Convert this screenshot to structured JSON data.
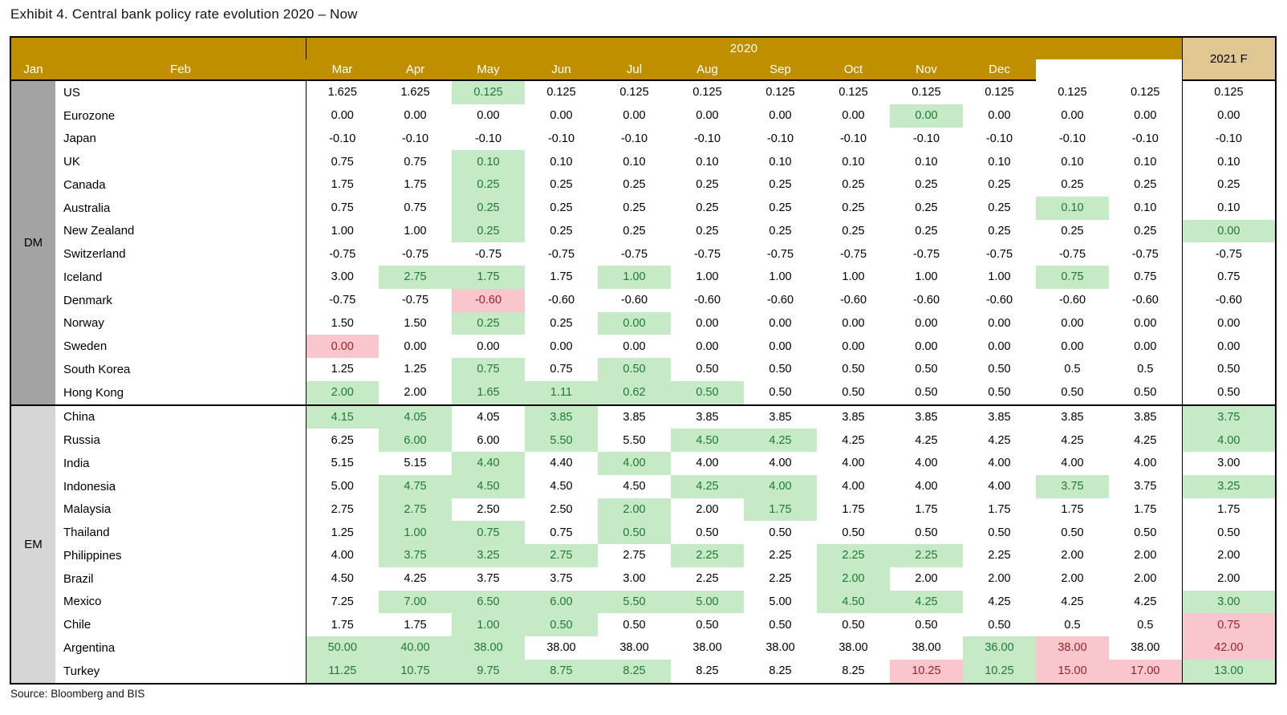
{
  "title": "Exhibit 4. Central bank policy rate evolution 2020 – Now",
  "source": "Source: Bloomberg and BIS",
  "colors": {
    "header_gold": "#BF8F00",
    "forecast_tan": "#E0C690",
    "dm_band": "#A3A3A3",
    "em_band": "#D6D6D6",
    "cut_bg": "#C6E9C6",
    "cut_text": "#1E7B34",
    "hike_bg": "#F8C6CC",
    "hike_text": "#9C2229",
    "border": "#000000"
  },
  "legend_note": {
    "g": "rate-cut highlight (green)",
    "r": "rate-hike highlight (pink)"
  },
  "table": {
    "header": {
      "year": "2020",
      "months": [
        "Jan",
        "Feb",
        "Mar",
        "Apr",
        "May",
        "Jun",
        "Jul",
        "Aug",
        "Sep",
        "Oct",
        "Nov",
        "Dec"
      ],
      "forecast": "2021 F"
    },
    "groups": [
      {
        "label": "DM",
        "rows": 14
      },
      {
        "label": "EM",
        "rows": 12
      }
    ],
    "rows": [
      {
        "country": "US",
        "values": [
          "1.625",
          "1.625",
          "0.125",
          "0.125",
          "0.125",
          "0.125",
          "0.125",
          "0.125",
          "0.125",
          "0.125",
          "0.125",
          "0.125",
          "0.125"
        ],
        "marks": [
          "",
          "",
          "g",
          "",
          "",
          "",
          "",
          "",
          "",
          "",
          "",
          "",
          ""
        ]
      },
      {
        "country": "Eurozone",
        "values": [
          "0.00",
          "0.00",
          "0.00",
          "0.00",
          "0.00",
          "0.00",
          "0.00",
          "0.00",
          "0.00",
          "0.00",
          "0.00",
          "0.00",
          "0.00"
        ],
        "marks": [
          "",
          "",
          "",
          "",
          "",
          "",
          "",
          "",
          "g",
          "",
          "",
          "",
          ""
        ]
      },
      {
        "country": "Japan",
        "values": [
          "-0.10",
          "-0.10",
          "-0.10",
          "-0.10",
          "-0.10",
          "-0.10",
          "-0.10",
          "-0.10",
          "-0.10",
          "-0.10",
          "-0.10",
          "-0.10",
          "-0.10"
        ],
        "marks": [
          "",
          "",
          "",
          "",
          "",
          "",
          "",
          "",
          "",
          "",
          "",
          "",
          ""
        ]
      },
      {
        "country": "UK",
        "values": [
          "0.75",
          "0.75",
          "0.10",
          "0.10",
          "0.10",
          "0.10",
          "0.10",
          "0.10",
          "0.10",
          "0.10",
          "0.10",
          "0.10",
          "0.10"
        ],
        "marks": [
          "",
          "",
          "g",
          "",
          "",
          "",
          "",
          "",
          "",
          "",
          "",
          "",
          ""
        ]
      },
      {
        "country": "Canada",
        "values": [
          "1.75",
          "1.75",
          "0.25",
          "0.25",
          "0.25",
          "0.25",
          "0.25",
          "0.25",
          "0.25",
          "0.25",
          "0.25",
          "0.25",
          "0.25"
        ],
        "marks": [
          "",
          "",
          "g",
          "",
          "",
          "",
          "",
          "",
          "",
          "",
          "",
          "",
          ""
        ]
      },
      {
        "country": "Australia",
        "values": [
          "0.75",
          "0.75",
          "0.25",
          "0.25",
          "0.25",
          "0.25",
          "0.25",
          "0.25",
          "0.25",
          "0.25",
          "0.10",
          "0.10",
          "0.10"
        ],
        "marks": [
          "",
          "",
          "g",
          "",
          "",
          "",
          "",
          "",
          "",
          "",
          "g",
          "",
          ""
        ]
      },
      {
        "country": "New Zealand",
        "values": [
          "1.00",
          "1.00",
          "0.25",
          "0.25",
          "0.25",
          "0.25",
          "0.25",
          "0.25",
          "0.25",
          "0.25",
          "0.25",
          "0.25",
          "0.00"
        ],
        "marks": [
          "",
          "",
          "g",
          "",
          "",
          "",
          "",
          "",
          "",
          "",
          "",
          "",
          "g"
        ]
      },
      {
        "country": "Switzerland",
        "values": [
          "-0.75",
          "-0.75",
          "-0.75",
          "-0.75",
          "-0.75",
          "-0.75",
          "-0.75",
          "-0.75",
          "-0.75",
          "-0.75",
          "-0.75",
          "-0.75",
          "-0.75"
        ],
        "marks": [
          "",
          "",
          "",
          "",
          "",
          "",
          "",
          "",
          "",
          "",
          "",
          "",
          ""
        ]
      },
      {
        "country": "Iceland",
        "values": [
          "3.00",
          "2.75",
          "1.75",
          "1.75",
          "1.00",
          "1.00",
          "1.00",
          "1.00",
          "1.00",
          "1.00",
          "0.75",
          "0.75",
          "0.75"
        ],
        "marks": [
          "",
          "g",
          "g",
          "",
          "g",
          "",
          "",
          "",
          "",
          "",
          "g",
          "",
          ""
        ]
      },
      {
        "country": "Denmark",
        "values": [
          "-0.75",
          "-0.75",
          "-0.60",
          "-0.60",
          "-0.60",
          "-0.60",
          "-0.60",
          "-0.60",
          "-0.60",
          "-0.60",
          "-0.60",
          "-0.60",
          "-0.60"
        ],
        "marks": [
          "",
          "",
          "r",
          "",
          "",
          "",
          "",
          "",
          "",
          "",
          "",
          "",
          ""
        ]
      },
      {
        "country": "Norway",
        "values": [
          "1.50",
          "1.50",
          "0.25",
          "0.25",
          "0.00",
          "0.00",
          "0.00",
          "0.00",
          "0.00",
          "0.00",
          "0.00",
          "0.00",
          "0.00"
        ],
        "marks": [
          "",
          "",
          "g",
          "",
          "g",
          "",
          "",
          "",
          "",
          "",
          "",
          "",
          ""
        ]
      },
      {
        "country": "Sweden",
        "values": [
          "0.00",
          "0.00",
          "0.00",
          "0.00",
          "0.00",
          "0.00",
          "0.00",
          "0.00",
          "0.00",
          "0.00",
          "0.00",
          "0.00",
          "0.00"
        ],
        "marks": [
          "r",
          "",
          "",
          "",
          "",
          "",
          "",
          "",
          "",
          "",
          "",
          "",
          ""
        ]
      },
      {
        "country": "South Korea",
        "values": [
          "1.25",
          "1.25",
          "0.75",
          "0.75",
          "0.50",
          "0.50",
          "0.50",
          "0.50",
          "0.50",
          "0.50",
          "0.5",
          "0.5",
          "0.50"
        ],
        "marks": [
          "",
          "",
          "g",
          "",
          "g",
          "",
          "",
          "",
          "",
          "",
          "",
          "",
          ""
        ]
      },
      {
        "country": "Hong Kong",
        "values": [
          "2.00",
          "2.00",
          "1.65",
          "1.11",
          "0.62",
          "0.50",
          "0.50",
          "0.50",
          "0.50",
          "0.50",
          "0.50",
          "0.50",
          "0.50"
        ],
        "marks": [
          "g",
          "",
          "g",
          "g",
          "g",
          "g",
          "",
          "",
          "",
          "",
          "",
          "",
          ""
        ]
      },
      {
        "country": "China",
        "values": [
          "4.15",
          "4.05",
          "4.05",
          "3.85",
          "3.85",
          "3.85",
          "3.85",
          "3.85",
          "3.85",
          "3.85",
          "3.85",
          "3.85",
          "3.75"
        ],
        "marks": [
          "g",
          "g",
          "",
          "g",
          "",
          "",
          "",
          "",
          "",
          "",
          "",
          "",
          "g"
        ]
      },
      {
        "country": "Russia",
        "values": [
          "6.25",
          "6.00",
          "6.00",
          "5.50",
          "5.50",
          "4.50",
          "4.25",
          "4.25",
          "4.25",
          "4.25",
          "4.25",
          "4.25",
          "4.00"
        ],
        "marks": [
          "",
          "g",
          "",
          "g",
          "",
          "g",
          "g",
          "",
          "",
          "",
          "",
          "",
          "g"
        ]
      },
      {
        "country": "India",
        "values": [
          "5.15",
          "5.15",
          "4.40",
          "4.40",
          "4.00",
          "4.00",
          "4.00",
          "4.00",
          "4.00",
          "4.00",
          "4.00",
          "4.00",
          "3.00"
        ],
        "marks": [
          "",
          "",
          "g",
          "",
          "g",
          "",
          "",
          "",
          "",
          "",
          "",
          "",
          ""
        ]
      },
      {
        "country": "Indonesia",
        "values": [
          "5.00",
          "4.75",
          "4.50",
          "4.50",
          "4.50",
          "4.25",
          "4.00",
          "4.00",
          "4.00",
          "4.00",
          "3.75",
          "3.75",
          "3.25"
        ],
        "marks": [
          "",
          "g",
          "g",
          "",
          "",
          "g",
          "g",
          "",
          "",
          "",
          "g",
          "",
          "g"
        ]
      },
      {
        "country": "Malaysia",
        "values": [
          "2.75",
          "2.75",
          "2.50",
          "2.50",
          "2.00",
          "2.00",
          "1.75",
          "1.75",
          "1.75",
          "1.75",
          "1.75",
          "1.75",
          "1.75"
        ],
        "marks": [
          "",
          "g",
          "",
          "",
          "g",
          "",
          "g",
          "",
          "",
          "",
          "",
          "",
          ""
        ]
      },
      {
        "country": "Thailand",
        "values": [
          "1.25",
          "1.00",
          "0.75",
          "0.75",
          "0.50",
          "0.50",
          "0.50",
          "0.50",
          "0.50",
          "0.50",
          "0.50",
          "0.50",
          "0.50"
        ],
        "marks": [
          "",
          "g",
          "g",
          "",
          "g",
          "",
          "",
          "",
          "",
          "",
          "",
          "",
          ""
        ]
      },
      {
        "country": "Philippines",
        "values": [
          "4.00",
          "3.75",
          "3.25",
          "2.75",
          "2.75",
          "2.25",
          "2.25",
          "2.25",
          "2.25",
          "2.25",
          "2.00",
          "2.00",
          "2.00"
        ],
        "marks": [
          "",
          "g",
          "g",
          "g",
          "",
          "g",
          "",
          "g",
          "g",
          "",
          "",
          "",
          ""
        ]
      },
      {
        "country": "Brazil",
        "values": [
          "4.50",
          "4.25",
          "3.75",
          "3.75",
          "3.00",
          "2.25",
          "2.25",
          "2.00",
          "2.00",
          "2.00",
          "2.00",
          "2.00",
          "2.00"
        ],
        "marks": [
          "",
          "",
          "",
          "",
          "",
          "",
          "",
          "g",
          "",
          "",
          "",
          "",
          ""
        ]
      },
      {
        "country": "Mexico",
        "values": [
          "7.25",
          "7.00",
          "6.50",
          "6.00",
          "5.50",
          "5.00",
          "5.00",
          "4.50",
          "4.25",
          "4.25",
          "4.25",
          "4.25",
          "3.00"
        ],
        "marks": [
          "",
          "g",
          "g",
          "g",
          "g",
          "g",
          "",
          "g",
          "g",
          "",
          "",
          "",
          "g"
        ]
      },
      {
        "country": "Chile",
        "values": [
          "1.75",
          "1.75",
          "1.00",
          "0.50",
          "0.50",
          "0.50",
          "0.50",
          "0.50",
          "0.50",
          "0.50",
          "0.5",
          "0.5",
          "0.75"
        ],
        "marks": [
          "",
          "",
          "g",
          "g",
          "",
          "",
          "",
          "",
          "",
          "",
          "",
          "",
          "r"
        ]
      },
      {
        "country": "Argentina",
        "values": [
          "50.00",
          "40.00",
          "38.00",
          "38.00",
          "38.00",
          "38.00",
          "38.00",
          "38.00",
          "38.00",
          "36.00",
          "38.00",
          "38.00",
          "42.00"
        ],
        "marks": [
          "g",
          "g",
          "g",
          "",
          "",
          "",
          "",
          "",
          "",
          "g",
          "r",
          "",
          "r"
        ]
      },
      {
        "country": "Turkey",
        "values": [
          "11.25",
          "10.75",
          "9.75",
          "8.75",
          "8.25",
          "8.25",
          "8.25",
          "8.25",
          "10.25",
          "10.25",
          "15.00",
          "17.00",
          "13.00"
        ],
        "marks": [
          "g",
          "g",
          "g",
          "g",
          "g",
          "",
          "",
          "",
          "r",
          "g",
          "r",
          "r",
          "g"
        ]
      }
    ]
  }
}
